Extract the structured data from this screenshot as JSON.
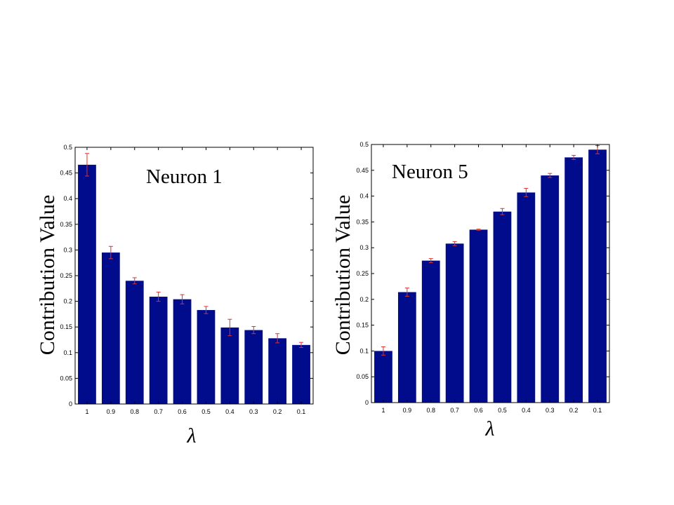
{
  "colors": {
    "bar": "#000c8c",
    "error_bar": "#e0302a",
    "axis": "#000000"
  },
  "chart_data": [
    {
      "type": "bar",
      "title": "Neuron 1",
      "xlabel": "λ",
      "ylabel": "Contribution Value",
      "categories": [
        "1",
        "0.9",
        "0.8",
        "0.7",
        "0.6",
        "0.5",
        "0.4",
        "0.3",
        "0.2",
        "0.1"
      ],
      "values": [
        0.466,
        0.295,
        0.24,
        0.209,
        0.204,
        0.183,
        0.149,
        0.144,
        0.128,
        0.115
      ],
      "errors": [
        0.022,
        0.012,
        0.006,
        0.009,
        0.009,
        0.007,
        0.016,
        0.007,
        0.009,
        0.005
      ],
      "ylim": [
        0,
        0.5
      ],
      "yticks": [
        "0",
        "0.05",
        "0.1",
        "0.15",
        "0.2",
        "0.25",
        "0.3",
        "0.35",
        "0.4",
        "0.45",
        "0.5"
      ],
      "grid": false,
      "legend": "none"
    },
    {
      "type": "bar",
      "title": "Neuron 5",
      "xlabel": "λ",
      "ylabel": "Contribution Value",
      "categories": [
        "1",
        "0.9",
        "0.8",
        "0.7",
        "0.6",
        "0.5",
        "0.4",
        "0.3",
        "0.2",
        "0.1"
      ],
      "values": [
        0.1,
        0.214,
        0.275,
        0.308,
        0.335,
        0.37,
        0.407,
        0.44,
        0.475,
        0.49
      ],
      "errors": [
        0.008,
        0.008,
        0.004,
        0.004,
        0.001,
        0.006,
        0.008,
        0.004,
        0.004,
        0.008
      ],
      "ylim": [
        0,
        0.5
      ],
      "yticks": [
        "0",
        "0.05",
        "0.1",
        "0.15",
        "0.2",
        "0.25",
        "0.3",
        "0.35",
        "0.4",
        "0.45",
        "0.5"
      ],
      "grid": false,
      "legend": "none"
    }
  ]
}
